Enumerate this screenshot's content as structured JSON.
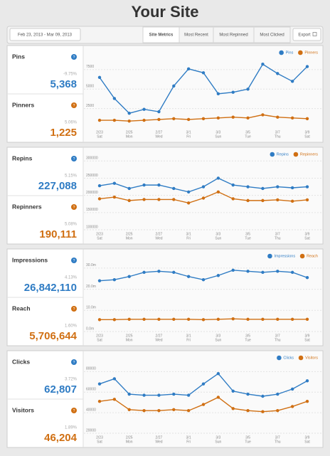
{
  "header": {
    "title": "Your Site"
  },
  "toolbar": {
    "date_range": "Feb 23, 2013 - Mar 09, 2013",
    "tabs": [
      "Site Metrics",
      "Most Recent",
      "Most Repinned",
      "Most Clicked"
    ],
    "active_tab": 0,
    "export": "Export"
  },
  "panels": [
    {
      "metrics": [
        {
          "name": "Pins",
          "change": "-9.75%",
          "value": "5,368"
        },
        {
          "name": "Pinners",
          "change": "5.06%",
          "value": "1,225"
        }
      ]
    },
    {
      "metrics": [
        {
          "name": "Repins",
          "change": "5.15%",
          "value": "227,088"
        },
        {
          "name": "Repinners",
          "change": "5.08%",
          "value": "190,111"
        }
      ]
    },
    {
      "metrics": [
        {
          "name": "Impressions",
          "change": "4.13%",
          "value": "26,842,110"
        },
        {
          "name": "Reach",
          "change": "1.60%",
          "value": "5,706,644"
        }
      ]
    },
    {
      "metrics": [
        {
          "name": "Clicks",
          "change": "3.72%",
          "value": "62,807"
        },
        {
          "name": "Visitors",
          "change": "1.89%",
          "value": "46,204"
        }
      ]
    }
  ],
  "chart_data": [
    {
      "type": "line",
      "grid": true,
      "legend": "top-right",
      "categories": [
        "2/23",
        null,
        "2/25",
        null,
        "2/27",
        null,
        "3/1",
        null,
        "3/3",
        null,
        "3/5",
        null,
        "3/7",
        null,
        "3/9"
      ],
      "category_days": [
        "Sat",
        null,
        "Mon",
        null,
        "Wed",
        null,
        "Fri",
        null,
        "Sun",
        null,
        "Tue",
        null,
        "Thu",
        null,
        "Sat"
      ],
      "ylim": [
        0,
        9500
      ],
      "yticks": [
        2500,
        5000,
        7500
      ],
      "series": [
        {
          "name": "Pins",
          "color": "#2f7cc4",
          "values": [
            6500,
            3800,
            1900,
            2400,
            2100,
            5400,
            7600,
            7100,
            4400,
            4600,
            5000,
            8200,
            7000,
            6000,
            7900
          ]
        },
        {
          "name": "Pinners",
          "color": "#d06f12",
          "values": [
            1000,
            1000,
            900,
            1000,
            1100,
            1200,
            1100,
            1200,
            1300,
            1400,
            1300,
            1700,
            1400,
            1300,
            1200
          ]
        }
      ]
    },
    {
      "type": "line",
      "grid": true,
      "legend": "top-right",
      "categories": [
        "2/23",
        null,
        "2/25",
        null,
        "2/27",
        null,
        "3/1",
        null,
        "3/3",
        null,
        "3/5",
        null,
        "3/7",
        null,
        "3/9"
      ],
      "category_days": [
        "Sat",
        null,
        "Mon",
        null,
        "Wed",
        null,
        "Fri",
        null,
        "Sun",
        null,
        "Tue",
        null,
        "Thu",
        null,
        "Sat"
      ],
      "ylim": [
        100000,
        315000
      ],
      "yticks": [
        100000,
        150000,
        200000,
        250000,
        300000
      ],
      "series": [
        {
          "name": "Repins",
          "color": "#2f7cc4",
          "values": [
            228000,
            235000,
            220000,
            230000,
            230000,
            220000,
            210000,
            225000,
            250000,
            230000,
            225000,
            220000,
            225000,
            222000,
            225000
          ]
        },
        {
          "name": "Repinners",
          "color": "#d06f12",
          "values": [
            190000,
            195000,
            185000,
            188000,
            188000,
            188000,
            178000,
            192000,
            210000,
            190000,
            185000,
            185000,
            187000,
            183000,
            187000
          ]
        }
      ]
    },
    {
      "type": "line",
      "grid": true,
      "legend": "top-right",
      "categories": [
        "2/23",
        null,
        "2/25",
        null,
        "2/27",
        null,
        "3/1",
        null,
        "3/3",
        null,
        "3/5",
        null,
        "3/7",
        null,
        "3/9"
      ],
      "category_days": [
        "Sat",
        null,
        "Mon",
        null,
        "Wed",
        null,
        "Fri",
        null,
        "Sun",
        null,
        "Tue",
        null,
        "Thu",
        null,
        "Sat"
      ],
      "ylim": [
        0,
        35000000
      ],
      "yticks": [
        {
          "value": 0,
          "label": "0.0m"
        },
        {
          "value": 10000000,
          "label": "10.0m"
        },
        {
          "value": 20000000,
          "label": "20.0m"
        },
        {
          "value": 30000000,
          "label": "30.0m"
        }
      ],
      "series": [
        {
          "name": "Impressions",
          "color": "#2f7cc4",
          "values": [
            24000000,
            24500000,
            26000000,
            28000000,
            28500000,
            28000000,
            26000000,
            24500000,
            26500000,
            29000000,
            28500000,
            28000000,
            28500000,
            28000000,
            25500000
          ]
        },
        {
          "name": "Reach",
          "color": "#d06f12",
          "values": [
            5600000,
            5600000,
            5800000,
            5800000,
            5800000,
            5800000,
            5800000,
            5600000,
            5800000,
            6000000,
            5800000,
            5800000,
            5800000,
            5800000,
            5800000
          ]
        }
      ]
    },
    {
      "type": "line",
      "grid": true,
      "legend": "top-right",
      "categories": [
        "2/23",
        null,
        "2/25",
        null,
        "2/27",
        null,
        "3/1",
        null,
        "3/3",
        null,
        "3/5",
        null,
        "3/7",
        null,
        "3/9"
      ],
      "category_days": [
        "Sat",
        null,
        "Mon",
        null,
        "Wed",
        null,
        "Fri",
        null,
        "Sun",
        null,
        "Tue",
        null,
        "Thu",
        null,
        "Sat"
      ],
      "ylim": [
        20000,
        92000
      ],
      "yticks": [
        20000,
        40000,
        60000,
        80000
      ],
      "series": [
        {
          "name": "Clicks",
          "color": "#2f7cc4",
          "values": [
            68000,
            73000,
            58000,
            57000,
            57000,
            58000,
            57000,
            68000,
            78000,
            61000,
            58000,
            56000,
            58000,
            63000,
            71000
          ]
        },
        {
          "name": "Visitors",
          "color": "#d06f12",
          "values": [
            51000,
            53000,
            43000,
            42000,
            42000,
            43000,
            42000,
            48000,
            55000,
            44000,
            42000,
            41000,
            42000,
            46000,
            51000
          ]
        }
      ]
    }
  ]
}
